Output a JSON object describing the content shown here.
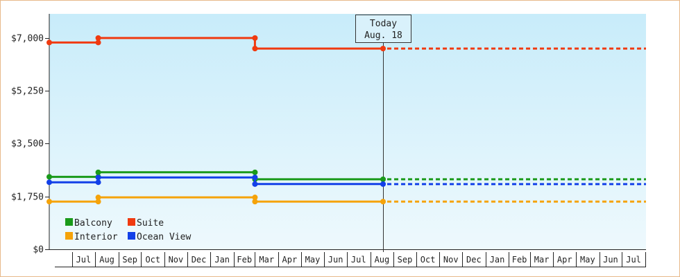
{
  "chart_data": {
    "type": "line",
    "step": true,
    "title": "",
    "xlabel": "",
    "ylabel": "",
    "ylim": [
      0,
      7800
    ],
    "y_ticks": [
      {
        "value": 0,
        "label": "$0"
      },
      {
        "value": 1750,
        "label": "$1,750"
      },
      {
        "value": 3500,
        "label": "$3,500"
      },
      {
        "value": 5250,
        "label": "$5,250"
      },
      {
        "value": 7000,
        "label": "$7,000"
      }
    ],
    "x_months": [
      "Jul",
      "Aug",
      "Sep",
      "Oct",
      "Nov",
      "Dec",
      "Jan",
      "Feb",
      "Mar",
      "Apr",
      "May",
      "Jun",
      "Jul",
      "Aug",
      "Sep",
      "Oct",
      "Nov",
      "Dec",
      "Jan",
      "Feb",
      "Mar",
      "Apr",
      "May",
      "Jun",
      "Jul"
    ],
    "x_start": "2017-06-01",
    "x_end": "2019-08-02",
    "today": {
      "date": "2018-08-18",
      "line1": "Today",
      "line2": "Aug. 18"
    },
    "background_gradient": [
      "#c8ecfa",
      "#eef9fd"
    ],
    "legend": {
      "position": "bottom-left",
      "order": [
        "Balcony",
        "Suite",
        "Interior",
        "Ocean View"
      ]
    },
    "series": [
      {
        "name": "Balcony",
        "color": "#1a9a1a",
        "points": [
          [
            "2017-06-01",
            2400
          ],
          [
            "2017-08-05",
            2400
          ],
          [
            "2017-08-05",
            2550
          ],
          [
            "2018-03-01",
            2550
          ],
          [
            "2018-03-01",
            2320
          ],
          [
            "2018-08-18",
            2320
          ]
        ],
        "markers": [
          "2017-06-01",
          "2017-08-05",
          "2018-03-01",
          "2018-08-18"
        ],
        "projection": [
          [
            "2018-08-18",
            2320
          ],
          [
            "2019-08-02",
            2320
          ]
        ]
      },
      {
        "name": "Suite",
        "color": "#f03a10",
        "points": [
          [
            "2017-06-01",
            6850
          ],
          [
            "2017-08-05",
            6850
          ],
          [
            "2017-08-05",
            7000
          ],
          [
            "2018-03-01",
            7000
          ],
          [
            "2018-03-01",
            6650
          ],
          [
            "2018-08-18",
            6650
          ]
        ],
        "markers": [
          "2017-06-01",
          "2017-08-05",
          "2018-03-01",
          "2018-08-18"
        ],
        "projection": [
          [
            "2018-08-18",
            6650
          ],
          [
            "2019-08-02",
            6650
          ]
        ]
      },
      {
        "name": "Interior",
        "color": "#f5a30a",
        "points": [
          [
            "2017-06-01",
            1580
          ],
          [
            "2017-08-05",
            1580
          ],
          [
            "2017-08-05",
            1720
          ],
          [
            "2018-03-01",
            1720
          ],
          [
            "2018-03-01",
            1580
          ],
          [
            "2018-08-18",
            1580
          ]
        ],
        "markers": [
          "2017-06-01",
          "2017-08-05",
          "2018-03-01",
          "2018-08-18"
        ],
        "projection": [
          [
            "2018-08-18",
            1580
          ],
          [
            "2019-08-02",
            1580
          ]
        ]
      },
      {
        "name": "Ocean View",
        "color": "#1240e8",
        "points": [
          [
            "2017-06-01",
            2220
          ],
          [
            "2017-08-05",
            2220
          ],
          [
            "2017-08-05",
            2380
          ],
          [
            "2018-03-01",
            2380
          ],
          [
            "2018-03-01",
            2160
          ],
          [
            "2018-08-18",
            2160
          ]
        ],
        "markers": [
          "2017-06-01",
          "2017-08-05",
          "2018-03-01",
          "2018-08-18"
        ],
        "projection": [
          [
            "2018-08-18",
            2160
          ],
          [
            "2019-08-02",
            2160
          ]
        ]
      }
    ]
  }
}
